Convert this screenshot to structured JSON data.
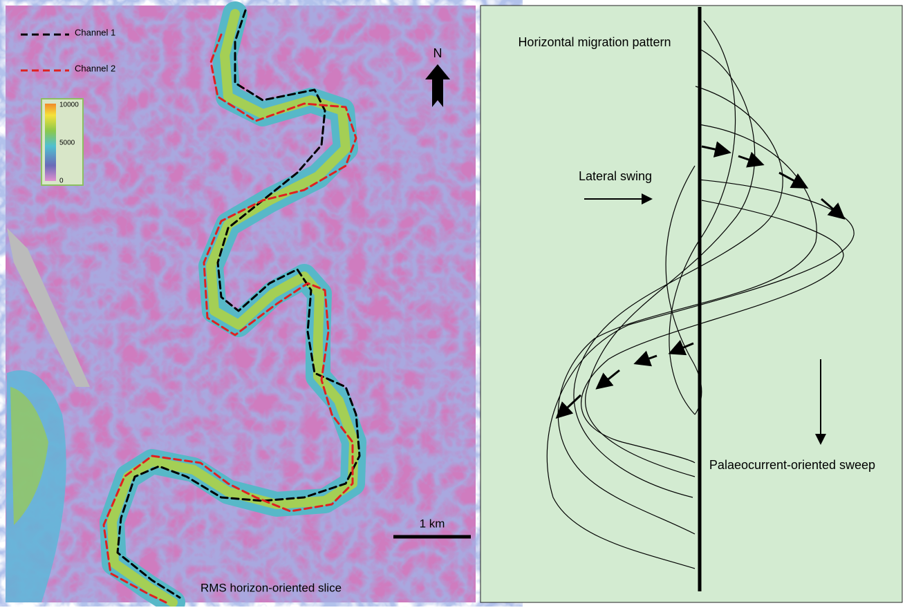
{
  "map": {
    "legend": [
      "Channel 1",
      "Channel 2"
    ],
    "colorbar": [
      10000,
      5000,
      0
    ],
    "north": "N",
    "scale": "1 km",
    "caption": "RMS horizon-oriented slice"
  },
  "diagram": {
    "title": "Horizontal migration pattern",
    "lateral": "Lateral swing",
    "sweep": "Palaeocurrent-oriented sweep"
  }
}
